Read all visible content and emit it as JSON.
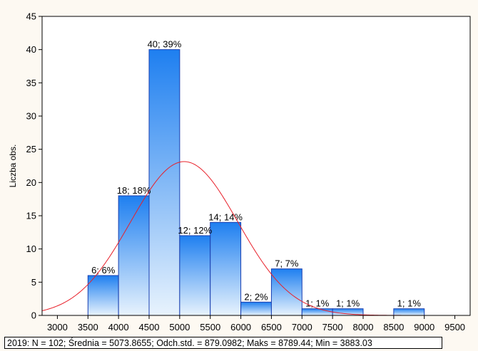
{
  "chart_data": {
    "type": "bar",
    "xlabel": "",
    "ylabel": "Liczba obs.",
    "xlim": [
      2750,
      9750
    ],
    "ylim": [
      0,
      45
    ],
    "xticks": [
      3000,
      3500,
      4000,
      4500,
      5000,
      5500,
      6000,
      6500,
      7000,
      7500,
      8000,
      8500,
      9000,
      9500
    ],
    "yticks": [
      0,
      5,
      10,
      15,
      20,
      25,
      30,
      35,
      40,
      45
    ],
    "grid": false,
    "bins": [
      {
        "start": 3500,
        "end": 4000,
        "count": 6,
        "label": "6; 6%"
      },
      {
        "start": 4000,
        "end": 4500,
        "count": 18,
        "label": "18; 18%"
      },
      {
        "start": 4500,
        "end": 5000,
        "count": 40,
        "label": "40; 39%"
      },
      {
        "start": 5000,
        "end": 5500,
        "count": 12,
        "label": "12; 12%"
      },
      {
        "start": 5500,
        "end": 6000,
        "count": 14,
        "label": "14; 14%"
      },
      {
        "start": 6000,
        "end": 6500,
        "count": 2,
        "label": "2; 2%"
      },
      {
        "start": 6500,
        "end": 7000,
        "count": 7,
        "label": "7; 7%"
      },
      {
        "start": 7000,
        "end": 7500,
        "count": 1,
        "label": "1; 1%"
      },
      {
        "start": 7500,
        "end": 8000,
        "count": 1,
        "label": "1; 1%"
      },
      {
        "start": 8500,
        "end": 9000,
        "count": 1,
        "label": "1; 1%"
      }
    ],
    "normal_curve": {
      "n": 102,
      "mean": 5073.8655,
      "sd": 879.0982,
      "bin_width": 500,
      "color": "#e8202a"
    },
    "bar_gradient": [
      "#e8f3fd",
      "#1e7ff0"
    ],
    "bar_border": "#1a3fb0"
  },
  "footer": {
    "text": "2019:   N = 102; Średnia = 5073.8655; Odch.std. = 879.0982; Maks = 8789.44; Min = 3883.03"
  }
}
